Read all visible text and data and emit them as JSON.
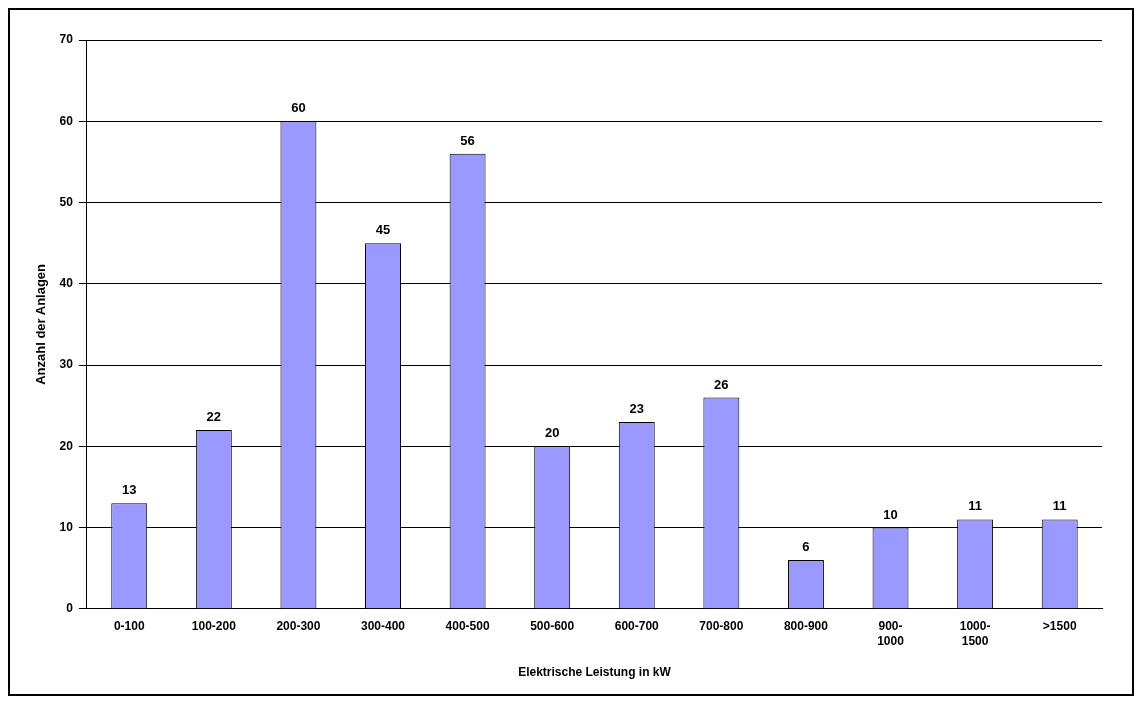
{
  "chart_data": {
    "type": "bar",
    "xlabel": "Elektrische Leistung in kW",
    "ylabel": "Anzahl der Anlagen",
    "categories": [
      "0-100",
      "100-200",
      "200-300",
      "300-400",
      "400-500",
      "500-600",
      "600-700",
      "700-800",
      "800-900",
      "900-1000",
      "1000-1500",
      ">1500"
    ],
    "values": [
      13,
      22,
      60,
      45,
      56,
      20,
      23,
      26,
      6,
      10,
      11,
      11
    ],
    "color": "#9999ff",
    "ylim": [
      0,
      70
    ],
    "yticks": [
      0,
      10,
      20,
      30,
      40,
      50,
      60,
      70
    ],
    "grid": "y",
    "data_labels": true
  }
}
